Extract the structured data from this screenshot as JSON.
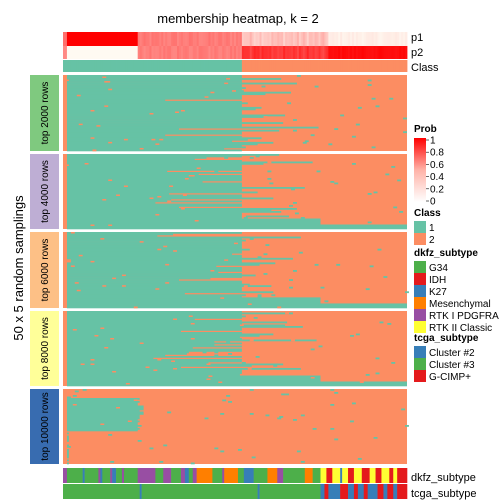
{
  "chart_data": {
    "type": "heatmap",
    "title": "membership heatmap, k = 2",
    "ylabel": "50 x 5 random samplings",
    "annotation_rows_top": [
      "p1",
      "p2",
      "Class"
    ],
    "annotation_rows_bottom": [
      "dkfz_subtype",
      "tcga_subtype"
    ],
    "panels": [
      {
        "label": "top 2000 rows",
        "class1_columns": 175,
        "class1_fraction": 0.82
      },
      {
        "label": "top 4000 rows",
        "class1_columns": 175,
        "class1_fraction": 0.76
      },
      {
        "label": "top 6000 rows",
        "class1_columns": 175,
        "class1_fraction": 0.72
      },
      {
        "label": "top 8000 rows",
        "class1_columns": 175,
        "class1_fraction": 0.74
      },
      {
        "label": "top 10000 rows",
        "class1_columns": 175,
        "class1_fraction": 0.22
      }
    ],
    "legends": {
      "prob": {
        "title": "Prob",
        "ticks": [
          "1",
          "0.8",
          "0.6",
          "0.4",
          "0.2",
          "0"
        ],
        "range": [
          0,
          1
        ],
        "colors": [
          "#ffffff",
          "#ff0000"
        ]
      },
      "class": {
        "title": "Class",
        "items": [
          {
            "label": "1",
            "color": "#66c2a5"
          },
          {
            "label": "2",
            "color": "#fc8d62"
          }
        ]
      },
      "dkfz_subtype": {
        "title": "dkfz_subtype",
        "items": [
          {
            "label": "G34",
            "color": "#4daf4a"
          },
          {
            "label": "IDH",
            "color": "#e41a1c"
          },
          {
            "label": "K27",
            "color": "#377eb8"
          },
          {
            "label": "Mesenchymal",
            "color": "#ff7f00"
          },
          {
            "label": "RTK I PDGFRA",
            "color": "#984ea3"
          },
          {
            "label": "RTK II Classic",
            "color": "#ffff33"
          }
        ]
      },
      "tcga_subtype": {
        "title": "tcga_subtype",
        "items": [
          {
            "label": "Cluster #2",
            "color": "#377eb8"
          },
          {
            "label": "Cluster #3",
            "color": "#4daf4a"
          },
          {
            "label": "G-CIMP+",
            "color": "#e41a1c"
          }
        ]
      }
    }
  }
}
